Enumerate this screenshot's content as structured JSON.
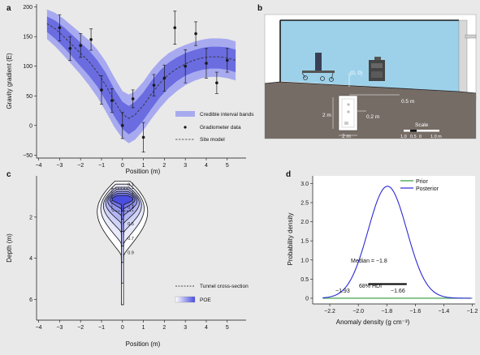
{
  "panels": {
    "a": "a",
    "b": "b",
    "c": "c",
    "d": "d"
  },
  "chart_data": [
    {
      "panel": "a",
      "type": "line",
      "xlabel": "Position (m)",
      "ylabel": "Gravity gradient (E)",
      "xlim": [
        -4.1,
        5.9
      ],
      "ylim": [
        -55,
        205
      ],
      "x_ticks": [
        -4,
        -3,
        -2,
        -1,
        0,
        1,
        2,
        3,
        4,
        5
      ],
      "x_tick_labels": [
        "−4",
        "−3",
        "−2",
        "−1",
        "0",
        "1",
        "2",
        "3",
        "4",
        "5"
      ],
      "y_ticks": [
        -50,
        0,
        50,
        100,
        150,
        200
      ],
      "y_tick_labels": [
        "−50",
        "0",
        "50",
        "100",
        "150",
        "200"
      ],
      "legend": {
        "placement": "bottom-right",
        "entries": [
          "Credible interval bands",
          "Gradiometer data",
          "Site model"
        ]
      },
      "colors": {
        "band_outer": "#a8aaf0",
        "band_inner": "#6a6ce0",
        "model_line": "#333333",
        "points": "#1a1a1a"
      },
      "site_model": {
        "x": [
          -3.6,
          -3.2,
          -2.8,
          -2.4,
          -2.0,
          -1.6,
          -1.2,
          -0.8,
          -0.4,
          0.0,
          0.3,
          0.6,
          1.0,
          1.4,
          1.8,
          2.2,
          2.6,
          3.0,
          3.4,
          3.8,
          4.2,
          4.6,
          5.0,
          5.4
        ],
        "y": [
          172,
          163,
          150,
          136,
          122,
          108,
          90,
          68,
          42,
          19,
          12,
          18,
          34,
          54,
          72,
          86,
          96,
          104,
          110,
          114,
          116,
          116,
          114,
          110
        ]
      },
      "inner_band": {
        "lower": [
          158,
          146,
          132,
          116,
          100,
          84,
          66,
          42,
          16,
          -6,
          -15,
          -8,
          9,
          29,
          48,
          63,
          75,
          84,
          90,
          94,
          96,
          96,
          94,
          90
        ],
        "upper": [
          184,
          177,
          166,
          153,
          140,
          127,
          110,
          89,
          62,
          40,
          33,
          40,
          56,
          76,
          93,
          106,
          115,
          122,
          127,
          131,
          133,
          133,
          132,
          128
        ]
      },
      "outer_band": {
        "lower": [
          146,
          133,
          118,
          102,
          86,
          68,
          48,
          24,
          -2,
          -22,
          -30,
          -24,
          -8,
          12,
          30,
          46,
          58,
          68,
          75,
          80,
          82,
          82,
          80,
          76
        ],
        "upper": [
          196,
          190,
          180,
          168,
          156,
          144,
          128,
          108,
          82,
          58,
          52,
          58,
          74,
          94,
          110,
          122,
          130,
          136,
          141,
          145,
          147,
          147,
          146,
          142
        ]
      },
      "gradiometer_data": {
        "x": [
          -3.0,
          -2.5,
          -2.0,
          -1.5,
          -1.0,
          -0.5,
          0.0,
          0.5,
          1.0,
          1.5,
          2.0,
          2.5,
          3.0,
          3.5,
          4.0,
          4.5,
          5.0
        ],
        "y": [
          165,
          130,
          135,
          145,
          60,
          42,
          0,
          45,
          -20,
          68,
          80,
          165,
          100,
          155,
          105,
          72,
          110
        ],
        "err": [
          22,
          20,
          20,
          18,
          24,
          20,
          22,
          15,
          25,
          18,
          22,
          28,
          28,
          20,
          25,
          18,
          20
        ]
      }
    },
    {
      "panel": "b",
      "type": "diagram",
      "labels": {
        "origin": "(0, 0)",
        "surface_offset": "0.5 m",
        "inner_offset": "0.2 m",
        "tunnel_height": "2 m",
        "tunnel_width": "2 m",
        "scale_title": "Scale",
        "scale_ticks": [
          "1.0",
          "0.5",
          "0",
          "1.0 m"
        ]
      },
      "colors": {
        "sky": "#9dd1ea",
        "ground": "#766c66",
        "tunnel": "#ffffff",
        "building": "#d8d8d8"
      }
    },
    {
      "panel": "c",
      "type": "contour",
      "xlabel": "Position (m)",
      "ylabel": "Depth (m)",
      "xlim": [
        -4.1,
        5.9
      ],
      "ylim": [
        7.0,
        0.0
      ],
      "x_ticks": [
        -4,
        -3,
        -2,
        -1,
        0,
        1,
        2,
        3,
        4,
        5
      ],
      "x_tick_labels": [
        "−4",
        "−3",
        "−2",
        "−1",
        "0",
        "1",
        "2",
        "3",
        "4",
        "5"
      ],
      "y_ticks": [
        2,
        4,
        6
      ],
      "y_tick_labels": [
        "2",
        "4",
        "6"
      ],
      "contour_levels": [
        "0.1",
        "0.3",
        "0.5",
        "0.7",
        "0.9"
      ],
      "legend": {
        "placement": "bottom-right",
        "entries": [
          "Tunnel cross-section",
          "POE"
        ]
      },
      "colors": {
        "poe_high": "#4a4ee0",
        "poe_low": "#ffffff",
        "contour_line": "#111111"
      }
    },
    {
      "panel": "d",
      "type": "line",
      "xlabel": "Anomaly density (g cm⁻³)",
      "ylabel": "Probability density",
      "xlim": [
        -2.32,
        -1.18
      ],
      "ylim": [
        -0.15,
        3.2
      ],
      "x_ticks": [
        -2.2,
        -2.0,
        -1.8,
        -1.6,
        -1.4,
        -1.2
      ],
      "x_tick_labels": [
        "−2.2",
        "−2.0",
        "−1.8",
        "−1.6",
        "−1.4",
        "−1.2"
      ],
      "y_ticks": [
        0,
        0.5,
        1.0,
        1.5,
        2.0,
        2.5,
        3.0
      ],
      "y_tick_labels": [
        "0",
        "0.5",
        "1.0",
        "1.5",
        "2.0",
        "2.5",
        "3.0"
      ],
      "legend": {
        "placement": "top-right",
        "entries": [
          "Prior",
          "Posterior"
        ]
      },
      "colors": {
        "prior": "#2e9b3a",
        "posterior": "#2a2ad6"
      },
      "prior": {
        "x": [
          -2.25,
          -1.2
        ],
        "y": [
          0,
          0
        ]
      },
      "posterior": {
        "mean": -1.795,
        "sd": 0.136,
        "peak": 2.93
      },
      "annotations": {
        "median": "Median = −1.8",
        "hdi": "68% HDI",
        "hdi_low": "−1.93",
        "hdi_high": "−1.66"
      },
      "hdi": [
        -1.93,
        -1.66
      ]
    }
  ]
}
